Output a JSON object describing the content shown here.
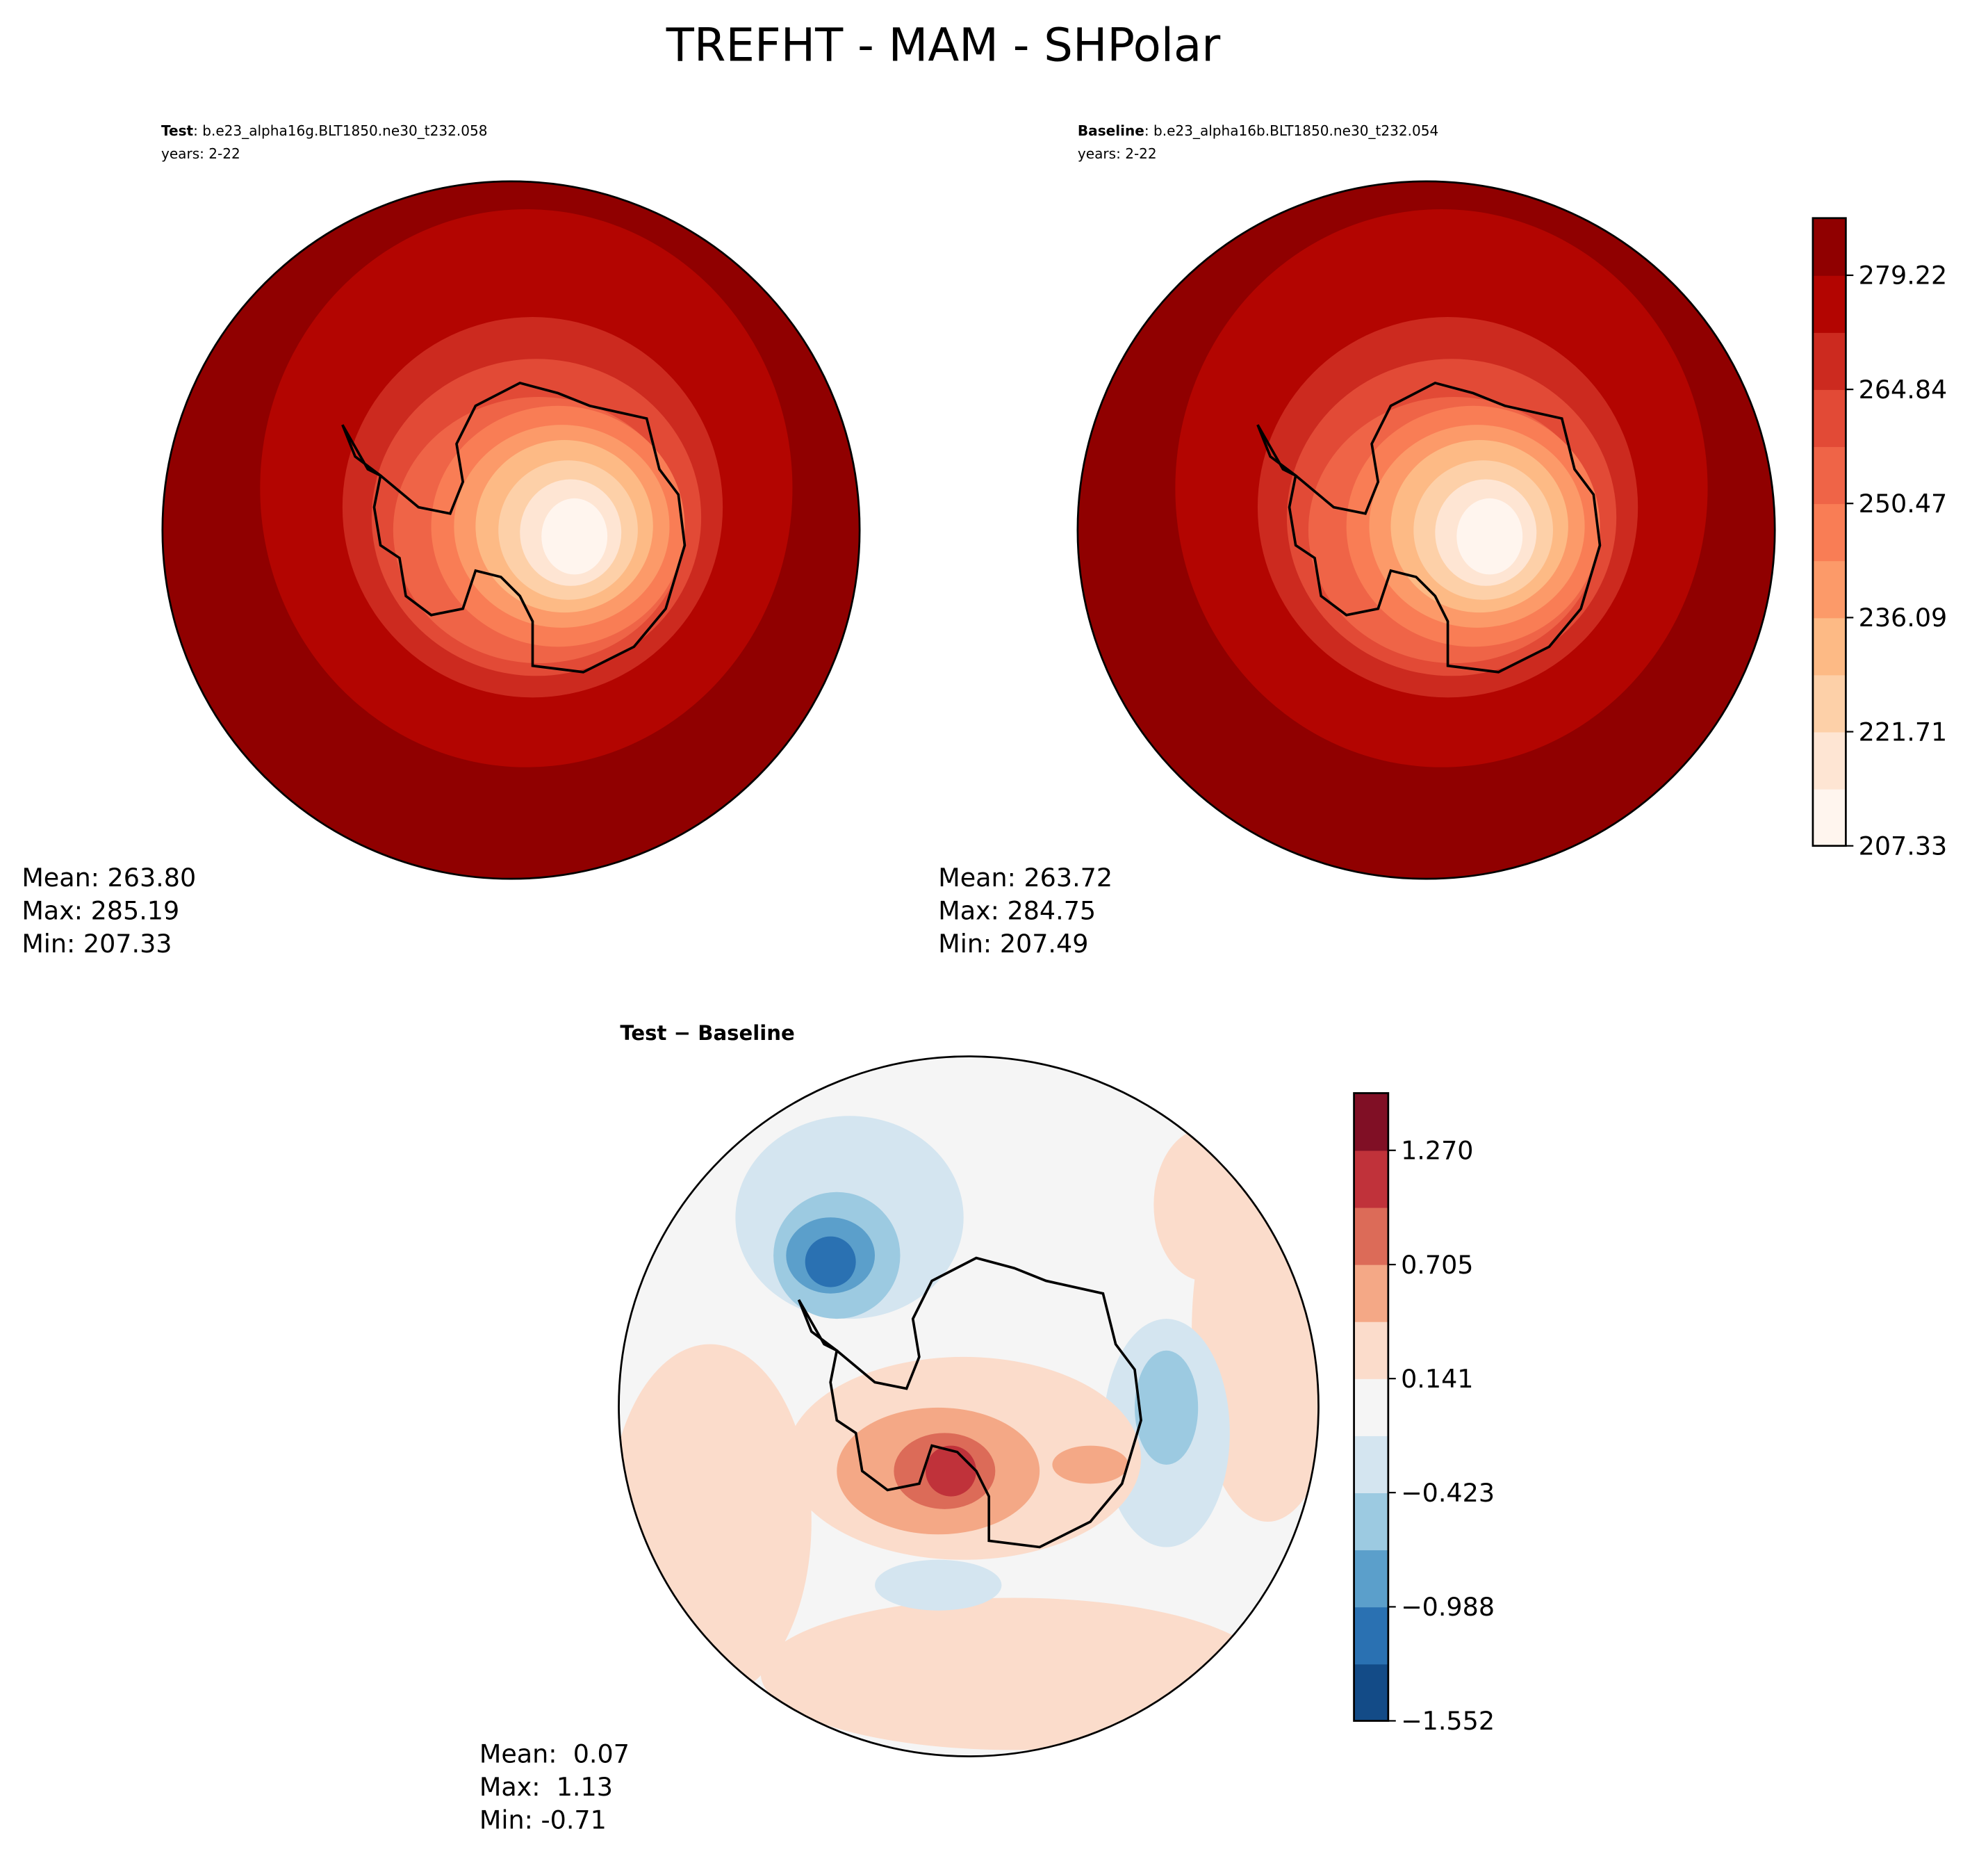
{
  "title": "TREFHT - MAM - SHPolar",
  "panels": [
    {
      "label_bold": "Test",
      "label": ": b.e23_alpha16g.BLT1850.ne30_t232.058",
      "years": "years: 2-22",
      "stats": [
        "Mean: 263.80",
        "Max: 285.19",
        "Min: 207.33"
      ]
    },
    {
      "label_bold": "Baseline",
      "label": ": b.e23_alpha16b.BLT1850.ne30_t232.054",
      "years": "years: 2-22",
      "stats": [
        "Mean: 263.72",
        "Max: 284.75",
        "Min: 207.49"
      ]
    },
    {
      "label_bold": "Test − Baseline",
      "stats": [
        "Mean:  0.07",
        "Max:  1.13",
        "Min: -0.71"
      ]
    }
  ],
  "colorbars": [
    {
      "lim": [
        207.33,
        286.42
      ],
      "ticks": [
        207.33,
        221.71,
        236.09,
        250.47,
        264.84,
        279.22
      ],
      "colors": [
        "#fff5ee",
        "#fee5d3",
        "#fdd0a8",
        "#fdba85",
        "#fc9a69",
        "#f97d55",
        "#ef6447",
        "#e24a36",
        "#cc2a1f",
        "#b30501",
        "#900000"
      ]
    },
    {
      "lim": [
        -1.552,
        1.553
      ],
      "ticks": [
        {
          "value": -1.552,
          "label": "−1.552"
        },
        {
          "value": -0.988,
          "label": "−0.988"
        },
        {
          "value": -0.423,
          "label": "−0.423"
        },
        0.141,
        0.705,
        {
          "value": 1.27,
          "label": "1.270"
        }
      ],
      "colors": [
        "#134b87",
        "#2a71b2",
        "#5b9fcb",
        "#9ccae1",
        "#d4e5f0",
        "#f5f5f5",
        "#fbdccb",
        "#f4a886",
        "#dc6b58",
        "#c0323a",
        "#800f25"
      ]
    }
  ]
}
